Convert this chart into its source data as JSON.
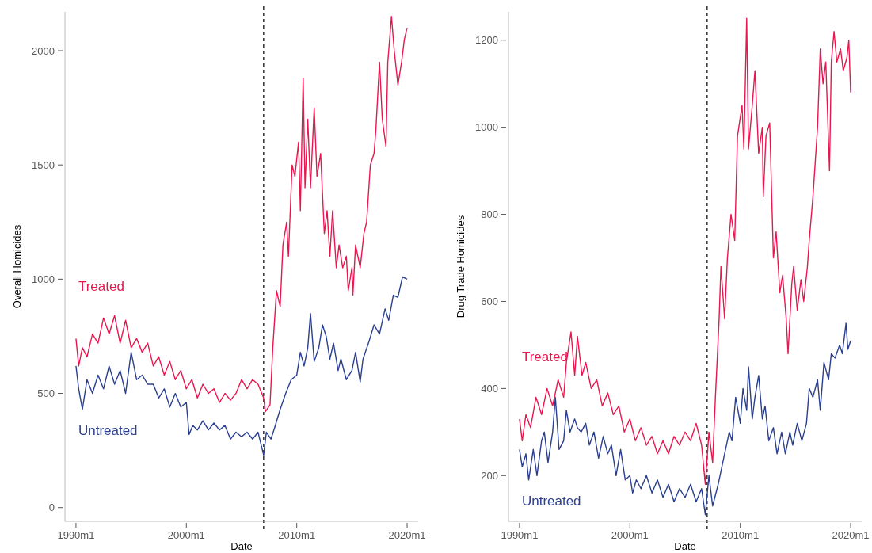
{
  "chart_data": [
    {
      "type": "line",
      "xlabel": "Date",
      "ylabel": "Overall Homicides",
      "xlim": [
        "1989-01",
        "2021-01"
      ],
      "ylim": [
        -60,
        2170
      ],
      "xticks": [
        {
          "value": "1990-01",
          "label": "1990m1"
        },
        {
          "value": "2000-01",
          "label": "2000m1"
        },
        {
          "value": "2010-01",
          "label": "2010m1"
        },
        {
          "value": "2020-01",
          "label": "2020m1"
        }
      ],
      "yticks": [
        0,
        500,
        1000,
        1500,
        2000
      ],
      "line_style": "solid",
      "ref_lines": [
        {
          "axis": "x",
          "value": "2007-01",
          "color": "#000000",
          "line_style": "dashed"
        }
      ],
      "series": [
        {
          "name": "Treated",
          "color": "#e8174f",
          "x": [
            "1990-01",
            "1990-04",
            "1990-08",
            "1991-01",
            "1991-07",
            "1992-01",
            "1992-07",
            "1993-01",
            "1993-07",
            "1994-01",
            "1994-07",
            "1995-01",
            "1995-07",
            "1996-01",
            "1996-07",
            "1997-01",
            "1997-07",
            "1998-01",
            "1998-07",
            "1999-01",
            "1999-07",
            "2000-01",
            "2000-07",
            "2001-01",
            "2001-07",
            "2002-01",
            "2002-07",
            "2003-01",
            "2003-07",
            "2004-01",
            "2004-07",
            "2005-01",
            "2005-07",
            "2006-01",
            "2006-07",
            "2007-01",
            "2007-03",
            "2007-08",
            "2007-11",
            "2008-03",
            "2008-07",
            "2008-10",
            "2009-02",
            "2009-04",
            "2009-08",
            "2009-11",
            "2010-03",
            "2010-05",
            "2010-08",
            "2010-10",
            "2011-01",
            "2011-04",
            "2011-08",
            "2011-11",
            "2012-03",
            "2012-07",
            "2012-10",
            "2013-01",
            "2013-04",
            "2013-08",
            "2013-11",
            "2014-03",
            "2014-07",
            "2014-09",
            "2015-01",
            "2015-02",
            "2015-05",
            "2015-10",
            "2016-02",
            "2016-05",
            "2016-09",
            "2017-01",
            "2017-03",
            "2017-07",
            "2017-10",
            "2018-02",
            "2018-04",
            "2018-08",
            "2018-11",
            "2019-03",
            "2019-07",
            "2019-10",
            "2020-01"
          ],
          "values": [
            740,
            620,
            700,
            660,
            760,
            720,
            830,
            760,
            840,
            720,
            820,
            700,
            740,
            680,
            720,
            620,
            660,
            580,
            640,
            560,
            600,
            520,
            560,
            480,
            540,
            500,
            520,
            460,
            500,
            470,
            500,
            560,
            520,
            560,
            540,
            480,
            420,
            450,
            700,
            950,
            880,
            1150,
            1250,
            1100,
            1500,
            1450,
            1600,
            1300,
            1880,
            1400,
            1700,
            1400,
            1750,
            1450,
            1550,
            1200,
            1300,
            1100,
            1300,
            1050,
            1150,
            1050,
            1100,
            950,
            1050,
            930,
            1150,
            1050,
            1200,
            1250,
            1500,
            1550,
            1650,
            1950,
            1700,
            1580,
            1950,
            2150,
            2000,
            1850,
            1950,
            2050,
            2100
          ]
        },
        {
          "name": "Untreated",
          "color": "#2b3f8f",
          "x": [
            "1990-01",
            "1990-04",
            "1990-08",
            "1991-01",
            "1991-07",
            "1992-01",
            "1992-07",
            "1993-01",
            "1993-07",
            "1994-01",
            "1994-07",
            "1995-01",
            "1995-07",
            "1996-01",
            "1996-07",
            "1997-01",
            "1997-07",
            "1998-01",
            "1998-07",
            "1999-01",
            "1999-07",
            "2000-01",
            "2000-04",
            "2000-08",
            "2001-01",
            "2001-07",
            "2002-01",
            "2002-07",
            "2003-01",
            "2003-07",
            "2004-01",
            "2004-07",
            "2005-01",
            "2005-07",
            "2006-01",
            "2006-07",
            "2007-01",
            "2007-04",
            "2007-09",
            "2008-01",
            "2008-07",
            "2009-01",
            "2009-07",
            "2010-01",
            "2010-05",
            "2010-09",
            "2011-01",
            "2011-04",
            "2011-08",
            "2012-01",
            "2012-05",
            "2012-09",
            "2013-01",
            "2013-05",
            "2013-10",
            "2014-01",
            "2014-07",
            "2015-01",
            "2015-05",
            "2015-10",
            "2016-01",
            "2016-07",
            "2017-01",
            "2017-07",
            "2018-01",
            "2018-05",
            "2018-10",
            "2019-03",
            "2019-08",
            "2020-01"
          ],
          "values": [
            620,
            520,
            430,
            560,
            500,
            580,
            520,
            620,
            540,
            600,
            500,
            680,
            560,
            580,
            540,
            540,
            480,
            520,
            440,
            500,
            440,
            460,
            320,
            360,
            340,
            380,
            340,
            370,
            340,
            360,
            300,
            330,
            310,
            330,
            300,
            330,
            230,
            330,
            300,
            350,
            430,
            500,
            560,
            580,
            680,
            620,
            700,
            850,
            640,
            700,
            800,
            750,
            650,
            720,
            600,
            650,
            560,
            600,
            680,
            550,
            650,
            720,
            800,
            760,
            870,
            820,
            930,
            920,
            1010,
            1000
          ]
        }
      ]
    },
    {
      "type": "line",
      "xlabel": "Date",
      "ylabel": "Drug Trade Homicides",
      "xlim": [
        "1989-01",
        "2021-01"
      ],
      "ylim": [
        95,
        1265
      ],
      "xticks": [
        {
          "value": "1990-01",
          "label": "1990m1"
        },
        {
          "value": "2000-01",
          "label": "2000m1"
        },
        {
          "value": "2010-01",
          "label": "2010m1"
        },
        {
          "value": "2020-01",
          "label": "2020m1"
        }
      ],
      "yticks": [
        200,
        400,
        600,
        800,
        1000,
        1200
      ],
      "line_style": "solid",
      "ref_lines": [
        {
          "axis": "x",
          "value": "2007-01",
          "color": "#000000",
          "line_style": "dashed"
        }
      ],
      "series": [
        {
          "name": "Treated",
          "color": "#e8174f",
          "x": [
            "1990-01",
            "1990-04",
            "1990-08",
            "1991-01",
            "1991-07",
            "1992-01",
            "1992-07",
            "1993-01",
            "1993-07",
            "1994-01",
            "1994-04",
            "1994-09",
            "1995-01",
            "1995-04",
            "1995-09",
            "1996-01",
            "1996-07",
            "1997-01",
            "1997-07",
            "1998-01",
            "1998-07",
            "1999-01",
            "1999-07",
            "2000-01",
            "2000-07",
            "2001-01",
            "2001-07",
            "2002-01",
            "2002-07",
            "2003-01",
            "2003-07",
            "2004-01",
            "2004-07",
            "2005-01",
            "2005-07",
            "2006-01",
            "2006-07",
            "2006-11",
            "2007-03",
            "2007-07",
            "2007-10",
            "2008-02",
            "2008-04",
            "2008-08",
            "2008-11",
            "2009-03",
            "2009-07",
            "2009-10",
            "2010-03",
            "2010-05",
            "2010-08",
            "2010-10",
            "2011-02",
            "2011-05",
            "2011-09",
            "2012-01",
            "2012-02",
            "2012-05",
            "2012-09",
            "2013-01",
            "2013-04",
            "2013-08",
            "2013-11",
            "2014-03",
            "2014-05",
            "2014-09",
            "2014-11",
            "2015-03",
            "2015-07",
            "2015-10",
            "2016-02",
            "2016-04",
            "2016-08",
            "2017-01",
            "2017-04",
            "2017-07",
            "2017-10",
            "2018-02",
            "2018-04",
            "2018-07",
            "2018-10",
            "2019-02",
            "2019-05",
            "2019-09",
            "2019-11",
            "2020-01"
          ],
          "values": [
            330,
            280,
            340,
            310,
            380,
            340,
            400,
            360,
            420,
            380,
            460,
            530,
            430,
            520,
            430,
            460,
            400,
            420,
            360,
            390,
            340,
            360,
            300,
            330,
            280,
            310,
            270,
            290,
            250,
            280,
            250,
            290,
            270,
            300,
            280,
            320,
            270,
            180,
            300,
            230,
            380,
            560,
            680,
            560,
            700,
            800,
            740,
            980,
            1050,
            950,
            1250,
            950,
            1050,
            1130,
            940,
            1000,
            840,
            980,
            1010,
            700,
            760,
            620,
            660,
            560,
            480,
            640,
            680,
            580,
            650,
            600,
            680,
            740,
            840,
            1000,
            1180,
            1100,
            1150,
            900,
            1150,
            1220,
            1150,
            1180,
            1130,
            1160,
            1200,
            1080
          ]
        },
        {
          "name": "Untreated",
          "color": "#2b3f8f",
          "x": [
            "1990-01",
            "1990-04",
            "1990-08",
            "1990-11",
            "1991-04",
            "1991-08",
            "1992-01",
            "1992-04",
            "1992-08",
            "1993-01",
            "1993-04",
            "1993-08",
            "1994-01",
            "1994-04",
            "1994-08",
            "1995-01",
            "1995-04",
            "1995-08",
            "1996-01",
            "1996-05",
            "1996-10",
            "1997-03",
            "1997-08",
            "1998-01",
            "1998-05",
            "1998-10",
            "1999-03",
            "1999-08",
            "2000-01",
            "2000-04",
            "2000-08",
            "2001-01",
            "2001-07",
            "2002-01",
            "2002-07",
            "2003-01",
            "2003-07",
            "2004-01",
            "2004-07",
            "2005-01",
            "2005-07",
            "2006-01",
            "2006-07",
            "2006-11",
            "2007-03",
            "2007-07",
            "2008-01",
            "2008-07",
            "2009-01",
            "2009-04",
            "2009-08",
            "2010-01",
            "2010-04",
            "2010-08",
            "2010-10",
            "2011-02",
            "2011-05",
            "2011-09",
            "2012-01",
            "2012-04",
            "2012-08",
            "2013-01",
            "2013-05",
            "2013-10",
            "2014-02",
            "2014-07",
            "2014-10",
            "2015-03",
            "2015-08",
            "2016-01",
            "2016-04",
            "2016-08",
            "2017-01",
            "2017-04",
            "2017-08",
            "2018-01",
            "2018-04",
            "2018-08",
            "2019-01",
            "2019-04",
            "2019-08",
            "2019-10",
            "2020-01"
          ],
          "values": [
            260,
            220,
            250,
            190,
            260,
            200,
            280,
            300,
            230,
            300,
            380,
            260,
            280,
            350,
            300,
            330,
            310,
            300,
            320,
            270,
            300,
            240,
            290,
            250,
            270,
            200,
            260,
            190,
            200,
            160,
            190,
            170,
            200,
            160,
            190,
            150,
            180,
            140,
            170,
            150,
            180,
            140,
            170,
            110,
            200,
            130,
            180,
            240,
            300,
            280,
            380,
            320,
            400,
            350,
            450,
            330,
            380,
            430,
            330,
            360,
            280,
            310,
            250,
            300,
            250,
            300,
            270,
            320,
            280,
            320,
            400,
            380,
            420,
            350,
            460,
            420,
            480,
            470,
            500,
            480,
            550,
            490,
            510
          ]
        }
      ]
    }
  ]
}
